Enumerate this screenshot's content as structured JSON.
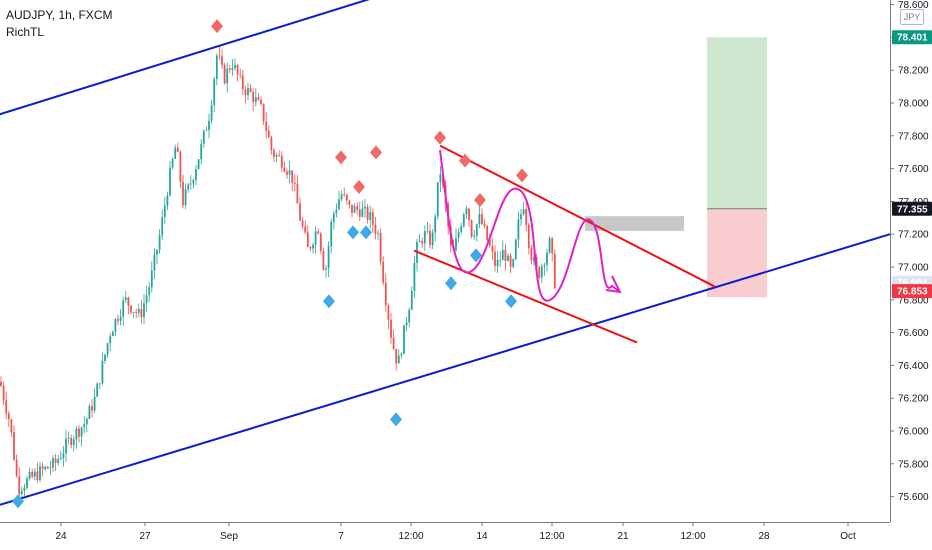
{
  "header": {
    "title": "AUDJPY, 1h, FXCM",
    "indicator": "RichTL"
  },
  "currency_unit": "JPY",
  "chart_data": {
    "type": "candlestick",
    "symbol": "AUDJPY",
    "timeframe": "1h",
    "source": "FXCM",
    "yaxis": {
      "range": [
        75.5,
        78.65
      ],
      "ticks": [
        "75.600",
        "75.800",
        "76.000",
        "76.200",
        "76.400",
        "76.600",
        "76.800",
        "77.000",
        "77.200",
        "77.400",
        "77.600",
        "77.800",
        "78.000",
        "78.200",
        "78.400",
        "78.600"
      ]
    },
    "xaxis": {
      "ticks": [
        "24",
        "27",
        "Sep",
        "7",
        "12:00",
        "14",
        "12:00",
        "21",
        "12:00",
        "28",
        "Oct"
      ]
    },
    "price_tags": [
      {
        "value": 78.401,
        "label": "78.401",
        "color": "#089981"
      },
      {
        "value": 77.355,
        "label": "77.355",
        "color": "#131722"
      },
      {
        "value": 76.904,
        "label": "76.904",
        "color": "#e0e3eb",
        "text_color": "#131722"
      },
      {
        "value": 76.853,
        "label": "76.853",
        "color": "#f23645"
      }
    ],
    "trendlines": [
      {
        "name": "upper-channel-line",
        "color": "#0a1ecf",
        "points": [
          [
            -1,
            77.93
          ],
          [
            378,
            78.65
          ]
        ]
      },
      {
        "name": "lower-channel-line",
        "color": "#0a1ecf",
        "points": [
          [
            0,
            75.55
          ],
          [
            890,
            77.2
          ]
        ]
      },
      {
        "name": "wedge-upper-line",
        "color": "#ee1111",
        "points": [
          [
            440,
            77.74
          ],
          [
            715,
            76.88
          ]
        ]
      },
      {
        "name": "wedge-lower-line",
        "color": "#ee1111",
        "points": [
          [
            414,
            77.1
          ],
          [
            637,
            76.54
          ]
        ]
      }
    ],
    "position": {
      "entry": 77.355,
      "target": 78.401,
      "stop": 76.853
    },
    "resistance_zone": {
      "top": 77.31,
      "bottom": 77.22
    },
    "pivot_highs": [
      {
        "x": 217,
        "y": 78.42
      },
      {
        "x": 341,
        "y": 77.62
      },
      {
        "x": 359,
        "y": 77.44
      },
      {
        "x": 376,
        "y": 77.65
      },
      {
        "x": 440,
        "y": 77.74
      },
      {
        "x": 465,
        "y": 77.6
      },
      {
        "x": 480,
        "y": 77.36
      },
      {
        "x": 522,
        "y": 77.51
      }
    ],
    "pivot_lows": [
      {
        "x": 18,
        "y": 75.62
      },
      {
        "x": 329,
        "y": 76.84
      },
      {
        "x": 353,
        "y": 77.26
      },
      {
        "x": 366,
        "y": 77.26
      },
      {
        "x": 396,
        "y": 76.12
      },
      {
        "x": 451,
        "y": 76.95
      },
      {
        "x": 476,
        "y": 77.12
      },
      {
        "x": 511,
        "y": 76.84
      }
    ]
  }
}
